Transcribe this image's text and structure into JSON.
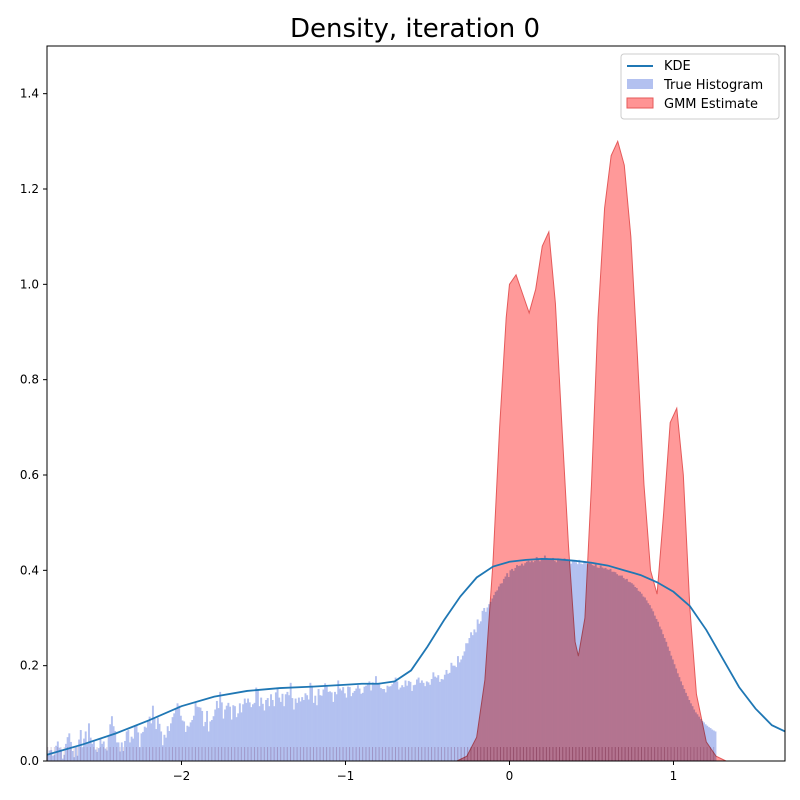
{
  "chart_data": {
    "type": "area",
    "title": "Density, iteration 0",
    "xlabel": "",
    "ylabel": "",
    "xlim": [
      -2.82,
      1.68
    ],
    "ylim": [
      0,
      1.5
    ],
    "x_ticks": [
      -2,
      -1,
      0,
      1
    ],
    "x_tick_labels": [
      "−2",
      "−1",
      "0",
      "1"
    ],
    "y_ticks": [
      0.0,
      0.2,
      0.4,
      0.6,
      0.8,
      1.0,
      1.2,
      1.4
    ],
    "y_tick_labels": [
      "0.0",
      "0.2",
      "0.4",
      "0.6",
      "0.8",
      "1.0",
      "1.2",
      "1.4"
    ],
    "grid": false,
    "legend_position": "top-right",
    "colors": {
      "kde": "#1f77b4",
      "histogram": "#b3c1f0",
      "gmm_fill": "#ff9494",
      "gmm_edge": "#e55a5a",
      "rug": "#7b4a7b"
    },
    "series": [
      {
        "name": "KDE",
        "kind": "line",
        "x": [
          -2.82,
          -2.6,
          -2.4,
          -2.2,
          -2.0,
          -1.8,
          -1.6,
          -1.4,
          -1.2,
          -1.0,
          -0.9,
          -0.8,
          -0.7,
          -0.6,
          -0.5,
          -0.4,
          -0.3,
          -0.2,
          -0.1,
          0.0,
          0.1,
          0.2,
          0.3,
          0.4,
          0.5,
          0.6,
          0.7,
          0.8,
          0.9,
          1.0,
          1.1,
          1.2,
          1.3,
          1.4,
          1.5,
          1.6,
          1.68
        ],
        "y": [
          0.013,
          0.035,
          0.058,
          0.085,
          0.115,
          0.135,
          0.147,
          0.153,
          0.156,
          0.16,
          0.162,
          0.162,
          0.167,
          0.19,
          0.24,
          0.295,
          0.345,
          0.385,
          0.408,
          0.418,
          0.422,
          0.424,
          0.423,
          0.42,
          0.416,
          0.41,
          0.4,
          0.39,
          0.375,
          0.355,
          0.325,
          0.275,
          0.215,
          0.155,
          0.11,
          0.075,
          0.062
        ]
      },
      {
        "name": "True Histogram",
        "kind": "histogram",
        "bin_start": -2.82,
        "bin_width": 0.01,
        "values": [
          0.014,
          0.022,
          0.023,
          0.011,
          0.013,
          0.032,
          0.041,
          0.028,
          0.024,
          0.005,
          0.013,
          0.036,
          0.05,
          0.058,
          0.04,
          0.021,
          0.008,
          0.03,
          0.011,
          0.045,
          0.065,
          0.029,
          0.047,
          0.062,
          0.039,
          0.079,
          0.049,
          0.036,
          0.044,
          0.024,
          0.019,
          0.027,
          0.048,
          0.036,
          0.041,
          0.026,
          0.022,
          0.051,
          0.077,
          0.094,
          0.073,
          0.063,
          0.039,
          0.039,
          0.02,
          0.039,
          0.021,
          0.042,
          0.062,
          0.065,
          0.039,
          0.051,
          0.047,
          0.073,
          0.075,
          0.06,
          0.029,
          0.058,
          0.061,
          0.072,
          0.07,
          0.086,
          0.093,
          0.079,
          0.116,
          0.089,
          0.067,
          0.091,
          0.078,
          0.062,
          0.033,
          0.055,
          0.049,
          0.073,
          0.063,
          0.079,
          0.092,
          0.1,
          0.109,
          0.121,
          0.116,
          0.095,
          0.085,
          0.083,
          0.061,
          0.074,
          0.072,
          0.081,
          0.086,
          0.095,
          0.122,
          0.114,
          0.113,
          0.112,
          0.105,
          0.073,
          0.082,
          0.105,
          0.062,
          0.083,
          0.086,
          0.094,
          0.108,
          0.126,
          0.111,
          0.145,
          0.123,
          0.089,
          0.108,
          0.116,
          0.122,
          0.114,
          0.087,
          0.117,
          0.115,
          0.092,
          0.1,
          0.121,
          0.102,
          0.119,
          0.131,
          0.122,
          0.131,
          0.123,
          0.113,
          0.119,
          0.122,
          0.154,
          0.149,
          0.115,
          0.133,
          0.12,
          0.106,
          0.128,
          0.132,
          0.115,
          0.14,
          0.128,
          0.115,
          0.144,
          0.152,
          0.133,
          0.124,
          0.141,
          0.115,
          0.14,
          0.145,
          0.138,
          0.164,
          0.132,
          0.108,
          0.131,
          0.122,
          0.133,
          0.125,
          0.134,
          0.128,
          0.142,
          0.138,
          0.129,
          0.164,
          0.158,
          0.122,
          0.137,
          0.117,
          0.151,
          0.138,
          0.137,
          0.15,
          0.163,
          0.156,
          0.145,
          0.146,
          0.144,
          0.124,
          0.145,
          0.14,
          0.169,
          0.152,
          0.148,
          0.155,
          0.142,
          0.133,
          0.156,
          0.155,
          0.136,
          0.143,
          0.147,
          0.152,
          0.159,
          0.152,
          0.141,
          0.143,
          0.156,
          0.158,
          0.161,
          0.167,
          0.148,
          0.165,
          0.162,
          0.178,
          0.161,
          0.164,
          0.153,
          0.151,
          0.151,
          0.144,
          0.158,
          0.156,
          0.157,
          0.161,
          0.166,
          0.175,
          0.167,
          0.15,
          0.154,
          0.159,
          0.155,
          0.169,
          0.158,
          0.168,
          0.166,
          0.147,
          0.159,
          0.16,
          0.171,
          0.175,
          0.164,
          0.169,
          0.164,
          0.157,
          0.167,
          0.165,
          0.16,
          0.172,
          0.186,
          0.177,
          0.175,
          0.18,
          0.166,
          0.172,
          0.171,
          0.181,
          0.191,
          0.183,
          0.185,
          0.206,
          0.2,
          0.2,
          0.197,
          0.22,
          0.207,
          0.213,
          0.221,
          0.23,
          0.247,
          0.247,
          0.258,
          0.27,
          0.264,
          0.276,
          0.27,
          0.297,
          0.288,
          0.293,
          0.315,
          0.321,
          0.313,
          0.322,
          0.329,
          0.334,
          0.341,
          0.348,
          0.355,
          0.358,
          0.366,
          0.372,
          0.373,
          0.382,
          0.387,
          0.394,
          0.386,
          0.4,
          0.403,
          0.399,
          0.405,
          0.411,
          0.409,
          0.41,
          0.414,
          0.41,
          0.415,
          0.418,
          0.42,
          0.417,
          0.42,
          0.417,
          0.42,
          0.428,
          0.425,
          0.419,
          0.426,
          0.423,
          0.431,
          0.426,
          0.423,
          0.424,
          0.425,
          0.426,
          0.42,
          0.417,
          0.425,
          0.424,
          0.421,
          0.421,
          0.425,
          0.422,
          0.423,
          0.421,
          0.414,
          0.419,
          0.419,
          0.417,
          0.413,
          0.422,
          0.414,
          0.413,
          0.418,
          0.417,
          0.413,
          0.417,
          0.414,
          0.411,
          0.409,
          0.413,
          0.406,
          0.405,
          0.41,
          0.406,
          0.404,
          0.405,
          0.402,
          0.401,
          0.403,
          0.397,
          0.397,
          0.396,
          0.392,
          0.389,
          0.389,
          0.389,
          0.384,
          0.381,
          0.382,
          0.376,
          0.375,
          0.373,
          0.37,
          0.365,
          0.363,
          0.357,
          0.355,
          0.351,
          0.345,
          0.343,
          0.337,
          0.331,
          0.327,
          0.32,
          0.314,
          0.305,
          0.298,
          0.292,
          0.282,
          0.276,
          0.266,
          0.258,
          0.25,
          0.24,
          0.231,
          0.221,
          0.213,
          0.203,
          0.194,
          0.184,
          0.176,
          0.167,
          0.159,
          0.151,
          0.143,
          0.136,
          0.128,
          0.121,
          0.115,
          0.108,
          0.102,
          0.098,
          0.093,
          0.088,
          0.084,
          0.081,
          0.077,
          0.074,
          0.071,
          0.069,
          0.066,
          0.064,
          0.062
        ]
      },
      {
        "name": "GMM Estimate",
        "kind": "area",
        "x": [
          -0.32,
          -0.26,
          -0.2,
          -0.15,
          -0.1,
          -0.06,
          -0.02,
          0.0,
          0.04,
          0.08,
          0.12,
          0.16,
          0.2,
          0.24,
          0.28,
          0.32,
          0.36,
          0.4,
          0.42,
          0.46,
          0.5,
          0.54,
          0.58,
          0.62,
          0.66,
          0.7,
          0.74,
          0.78,
          0.82,
          0.86,
          0.9,
          0.94,
          0.98,
          1.02,
          1.06,
          1.1,
          1.14,
          1.2,
          1.26,
          1.32
        ],
        "y": [
          0.0,
          0.01,
          0.05,
          0.17,
          0.42,
          0.7,
          0.93,
          1.0,
          1.02,
          0.98,
          0.94,
          0.99,
          1.08,
          1.11,
          0.96,
          0.7,
          0.45,
          0.25,
          0.22,
          0.3,
          0.58,
          0.93,
          1.16,
          1.27,
          1.3,
          1.25,
          1.1,
          0.85,
          0.58,
          0.4,
          0.35,
          0.52,
          0.71,
          0.74,
          0.6,
          0.32,
          0.14,
          0.04,
          0.01,
          0.0
        ]
      }
    ]
  }
}
